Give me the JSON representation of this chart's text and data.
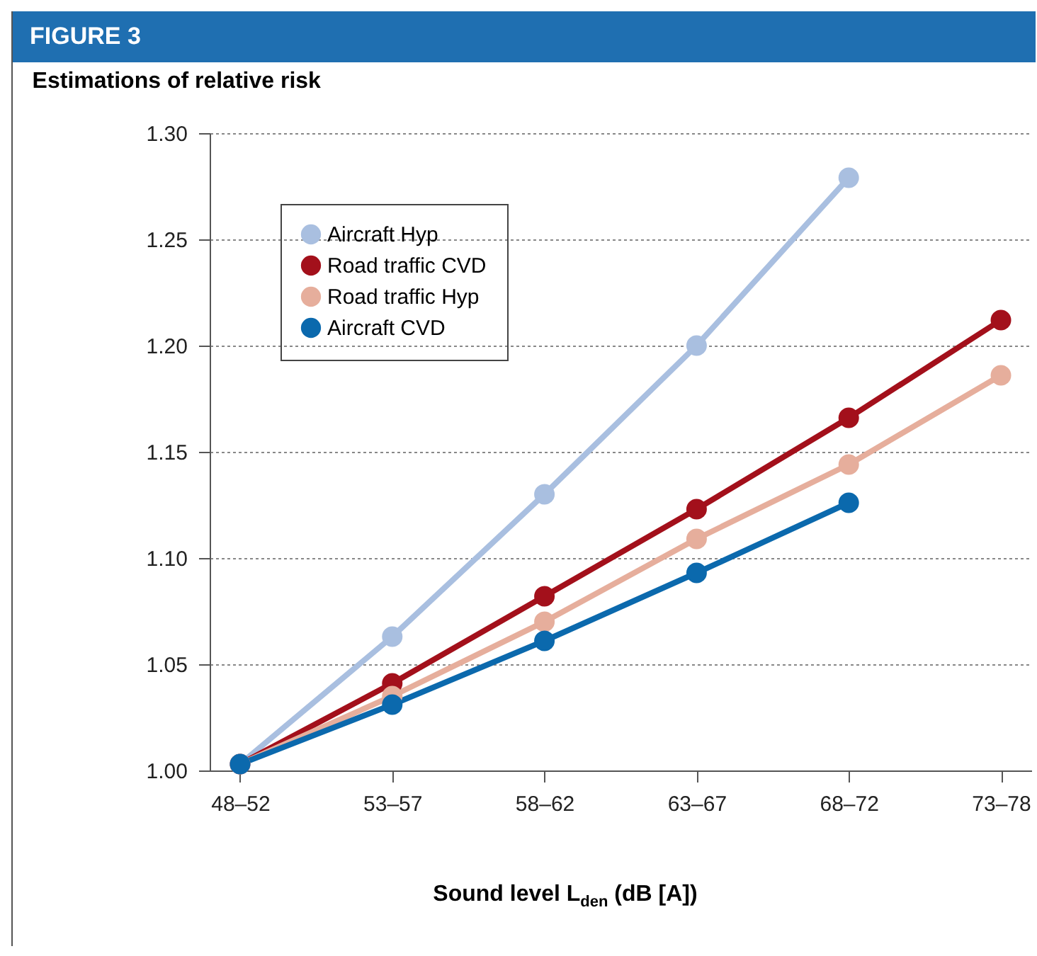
{
  "chart_data": {
    "type": "line",
    "title": "FIGURE 3",
    "subtitle": "Estimations of relative risk",
    "xlabel": "Sound level L$_{den}$ (dB [A])",
    "categories": [
      "48–52",
      "53–57",
      "58–62",
      "63–67",
      "68–72",
      "73–78"
    ],
    "series": [
      {
        "name": "Aircraft Hyp",
        "color": "#a9bfe0",
        "values": [
          1.003,
          1.063,
          1.13,
          1.2,
          1.279,
          null
        ]
      },
      {
        "name": "Road traffic CVD",
        "color": "#a3101b",
        "values": [
          1.003,
          1.041,
          1.082,
          1.123,
          1.166,
          1.212
        ]
      },
      {
        "name": "Road traffic Hyp",
        "color": "#e6ae9c",
        "values": [
          1.003,
          1.035,
          1.07,
          1.109,
          1.144,
          1.186
        ]
      },
      {
        "name": "Aircraft CVD",
        "color": "#0b69ad",
        "values": [
          1.003,
          1.031,
          1.061,
          1.093,
          1.126,
          null
        ]
      }
    ],
    "ylim": [
      1.0,
      1.3
    ],
    "yticks": [
      {
        "value": 1.0,
        "label": "1.00"
      },
      1.05,
      {
        "value": 1.1,
        "label": "1.10"
      },
      1.15,
      {
        "value": 1.2,
        "label": "1.20"
      },
      1.25,
      {
        "value": 1.3,
        "label": "1.30"
      }
    ],
    "grid": "y",
    "legend": "top left",
    "marker": "circle",
    "line_style": "solid"
  }
}
